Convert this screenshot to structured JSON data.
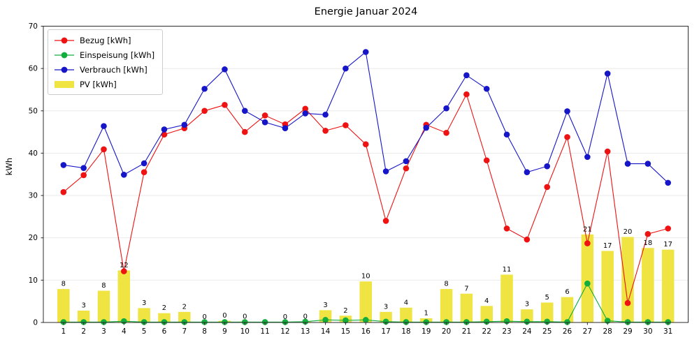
{
  "chart_data": {
    "type": "line+bar",
    "title": "Energie Januar 2024",
    "ylabel": "kWh",
    "xlabel": "",
    "ylim": [
      0,
      70
    ],
    "xlim": [
      0,
      32
    ],
    "yticks": [
      0,
      10,
      20,
      30,
      40,
      50,
      60,
      70
    ],
    "x_days": [
      1,
      2,
      3,
      4,
      5,
      6,
      7,
      8,
      9,
      10,
      11,
      12,
      13,
      14,
      15,
      16,
      17,
      18,
      19,
      20,
      21,
      22,
      23,
      24,
      25,
      26,
      27,
      28,
      29,
      30,
      31
    ],
    "grid": "horizontal",
    "legend_position": "upper-left",
    "series": [
      {
        "name": "Bezug [kWh]",
        "type": "line",
        "marker": "circle",
        "color": "#ee1212",
        "values": [
          30.8,
          34.8,
          40.9,
          12.1,
          35.5,
          44.4,
          45.9,
          50.0,
          51.4,
          45.0,
          48.9,
          46.8,
          50.5,
          45.3,
          46.6,
          42.1,
          24.0,
          36.4,
          46.7,
          44.8,
          53.9,
          38.3,
          22.2,
          19.6,
          32.0,
          43.8,
          18.7,
          40.4,
          4.6,
          20.9,
          22.2
        ]
      },
      {
        "name": "Einspeisung [kWh]",
        "type": "line",
        "marker": "circle",
        "color": "#12ad3c",
        "values": [
          0.1,
          0.1,
          0.1,
          0.3,
          0.1,
          0.1,
          0.1,
          0.1,
          0.1,
          0.1,
          0.1,
          0.1,
          0.2,
          0.6,
          0.5,
          0.6,
          0.2,
          0.1,
          0.1,
          0.1,
          0.1,
          0.2,
          0.3,
          0.2,
          0.2,
          0.1,
          9.2,
          0.4,
          0.1,
          0.1,
          0.1
        ]
      },
      {
        "name": "Verbrauch [kWh]",
        "type": "line",
        "marker": "circle",
        "color": "#1616c8",
        "values": [
          37.2,
          36.5,
          46.4,
          34.9,
          37.6,
          45.6,
          46.7,
          55.2,
          59.8,
          50.0,
          47.3,
          45.9,
          49.4,
          49.1,
          60.0,
          63.9,
          35.7,
          38.1,
          46.0,
          50.6,
          58.4,
          55.2,
          44.4,
          35.5,
          36.9,
          49.9,
          39.1,
          58.8,
          37.5,
          37.5,
          33.0
        ]
      },
      {
        "name": "PV [kWh]",
        "type": "bar",
        "color": "#f0e442",
        "values": [
          7.9,
          2.8,
          7.5,
          12.3,
          3.4,
          2.2,
          2.5,
          0.05,
          0.4,
          0.2,
          null,
          0.1,
          0.2,
          2.9,
          1.6,
          9.7,
          2.5,
          3.5,
          1.0,
          7.9,
          6.8,
          3.9,
          11.3,
          3.1,
          4.7,
          6.0,
          20.8,
          16.9,
          20.2,
          17.6,
          17.2
        ],
        "bar_labels": [
          "8",
          "3",
          "8",
          "12",
          "3",
          "2",
          "2",
          "0",
          "0",
          "0",
          "",
          "0",
          "0",
          "3",
          "2",
          "10",
          "3",
          "4",
          "1",
          "8",
          "7",
          "4",
          "11",
          "3",
          "5",
          "6",
          "21",
          "17",
          "20",
          "18",
          "17"
        ]
      }
    ]
  }
}
